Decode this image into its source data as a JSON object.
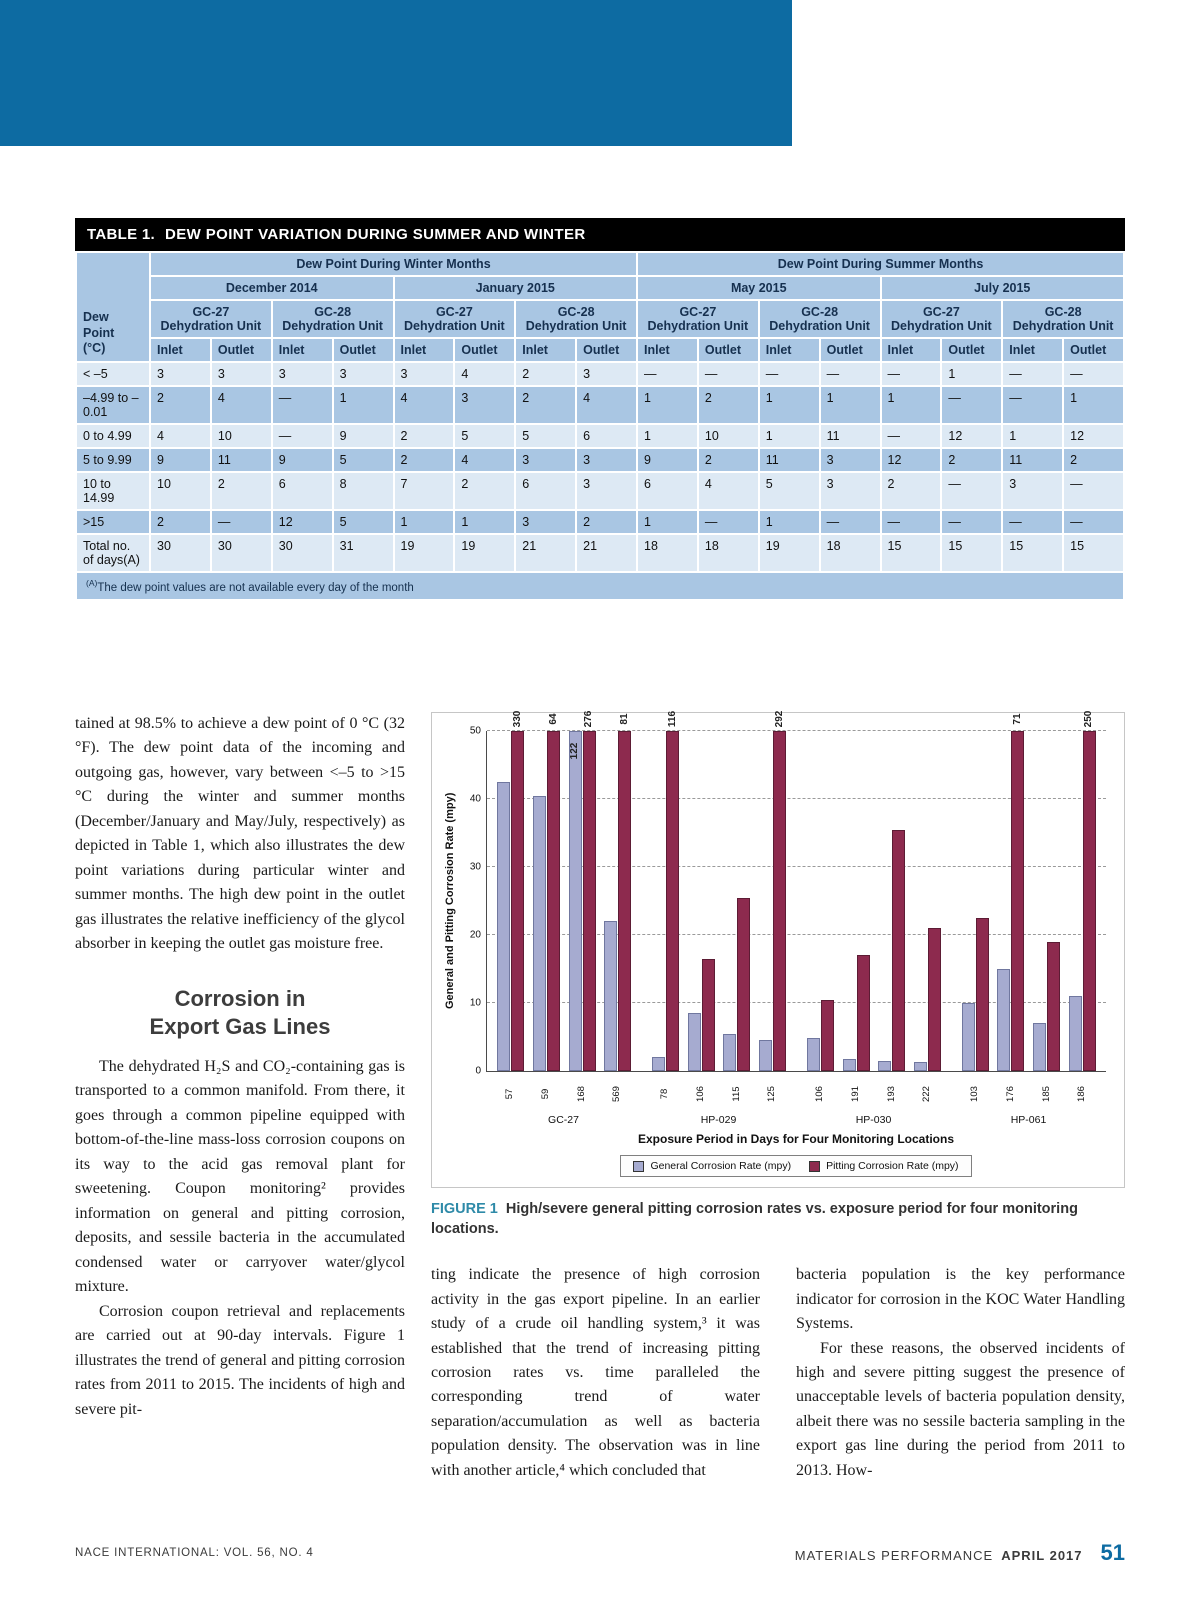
{
  "colors": {
    "accent_blue": "#0d6ba2",
    "table_header_blue": "#a9c6e3",
    "table_row_light": "#dde9f4",
    "bar_general": "#a6abd0",
    "bar_pitting": "#8d2a4e",
    "figure_label_teal": "#2e8aa8",
    "titlebar_black": "#000000"
  },
  "table1": {
    "label": "TABLE 1.",
    "title": "DEW POINT VARIATION DURING SUMMER AND WINTER",
    "corner_label": "Dew\nPoint\n(°C)",
    "season_headers": [
      "Dew Point During Winter Months",
      "Dew Point During Summer Months"
    ],
    "month_headers": [
      "December 2014",
      "January 2015",
      "May 2015",
      "July 2015"
    ],
    "unit_headers": [
      "GC-27 Dehydration Unit",
      "GC-28 Dehydration Unit"
    ],
    "io_headers": [
      "Inlet",
      "Outlet"
    ],
    "rows": [
      {
        "label": "< –5",
        "values": [
          "3",
          "3",
          "3",
          "3",
          "3",
          "4",
          "2",
          "3",
          "—",
          "—",
          "—",
          "—",
          "—",
          "1",
          "—",
          "—"
        ]
      },
      {
        "label": "–4.99 to –0.01",
        "values": [
          "2",
          "4",
          "—",
          "1",
          "4",
          "3",
          "2",
          "4",
          "1",
          "2",
          "1",
          "1",
          "1",
          "—",
          "—",
          "1"
        ]
      },
      {
        "label": "0 to 4.99",
        "values": [
          "4",
          "10",
          "—",
          "9",
          "2",
          "5",
          "5",
          "6",
          "1",
          "10",
          "1",
          "11",
          "—",
          "12",
          "1",
          "12"
        ]
      },
      {
        "label": "5 to 9.99",
        "values": [
          "9",
          "11",
          "9",
          "5",
          "2",
          "4",
          "3",
          "3",
          "9",
          "2",
          "11",
          "3",
          "12",
          "2",
          "11",
          "2"
        ]
      },
      {
        "label": "10 to 14.99",
        "values": [
          "10",
          "2",
          "6",
          "8",
          "7",
          "2",
          "6",
          "3",
          "6",
          "4",
          "5",
          "3",
          "2",
          "—",
          "3",
          "—"
        ]
      },
      {
        "label": ">15",
        "values": [
          "2",
          "—",
          "12",
          "5",
          "1",
          "1",
          "3",
          "2",
          "1",
          "—",
          "1",
          "—",
          "—",
          "—",
          "—",
          "—"
        ]
      },
      {
        "label": "Total no. of days(A)",
        "values": [
          "30",
          "30",
          "30",
          "31",
          "19",
          "19",
          "21",
          "21",
          "18",
          "18",
          "19",
          "18",
          "15",
          "15",
          "15",
          "15"
        ]
      }
    ],
    "footnote_marker": "(A)",
    "footnote_text": "The dew point values are not available every day of the month"
  },
  "columns": {
    "left": {
      "p1": "tained at 98.5% to achieve a dew point of 0 °C (32 °F). The dew point data of the incoming and outgoing gas, however, vary between <–5 to >15 °C during the winter and summer months (December/January and May/July, respectively) as depicted in Table 1, which also illustrates the dew point variations during particular winter and summer months. The high dew point in the outlet gas illustrates the relative inefficiency of the glycol absorber in keeping the outlet gas moisture free.",
      "heading_lines": [
        "Corrosion in",
        "Export Gas Lines"
      ],
      "p2": "The dehydrated H₂S and CO₂-containing gas is transported to a common manifold. From there, it goes through a common pipeline equipped with bottom-of-the-line mass-loss corrosion coupons on its way to the acid gas removal plant for sweetening. Coupon monitoring² provides information on general and pitting corrosion, deposits, and sessile bacteria in the accumulated condensed water or carryover water/glycol mixture.",
      "p3": "Corrosion coupon retrieval and replacements are carried out at 90-day intervals. Figure 1 illustrates the trend of general and pitting corrosion rates from 2011 to 2015. The incidents of high and severe pit-"
    },
    "middle": {
      "p1": "ting indicate the presence of high corrosion activity in the gas export pipeline. In an earlier study of a crude oil handling system,³ it was established that the trend of increasing pitting corrosion rates vs. time paralleled the corresponding trend of water separation/accumulation as well as bacteria population density. The observation was in line with another article,⁴ which concluded that"
    },
    "right": {
      "p1": "bacteria population is the key performance indicator for corrosion in the KOC Water Handling Systems.",
      "p2": "For these reasons, the observed incidents of high and severe pitting suggest the presence of unacceptable levels of bacteria population density, albeit there was no sessile bacteria sampling in the export gas line during the period from 2011 to 2013. How-"
    }
  },
  "figure_caption": {
    "label": "FIGURE 1",
    "text": "High/severe general pitting corrosion rates vs. exposure period for four monitoring locations."
  },
  "chart_data": {
    "type": "bar",
    "title": "",
    "ylabel": "General  and Pitting Corrosion Rate (mpy)",
    "xlabel": "Exposure Period in Days for Four Monitoring Locations",
    "ylim": [
      0,
      50
    ],
    "yticks": [
      0,
      10,
      20,
      30,
      40,
      50
    ],
    "grid": "dashed-horizontal",
    "legend": [
      "General Corrosion Rate (mpy)",
      "Pitting Corrosion Rate (mpy)"
    ],
    "clipping_note": "bars exceeding 50 mpy are clipped at the axis limit and labeled with their value",
    "groups": [
      {
        "name": "GC-27",
        "points": [
          {
            "x": "57",
            "general": 42.5,
            "pitting": 330
          },
          {
            "x": "59",
            "general": 40.5,
            "pitting": 64
          },
          {
            "x": "168",
            "general": 122,
            "pitting": 276
          },
          {
            "x": "569",
            "general": 22,
            "pitting": 81
          }
        ]
      },
      {
        "name": "HP-029",
        "points": [
          {
            "x": "78",
            "general": 2,
            "pitting": 116
          },
          {
            "x": "106",
            "general": 8.5,
            "pitting": 16.5
          },
          {
            "x": "115",
            "general": 5.5,
            "pitting": 25.5
          },
          {
            "x": "125",
            "general": 4.5,
            "pitting": 292
          }
        ]
      },
      {
        "name": "HP-030",
        "points": [
          {
            "x": "106",
            "general": 4.8,
            "pitting": 10.5
          },
          {
            "x": "191",
            "general": 1.8,
            "pitting": 17
          },
          {
            "x": "193",
            "general": 1.5,
            "pitting": 35.5
          },
          {
            "x": "222",
            "general": 1.3,
            "pitting": 21
          }
        ]
      },
      {
        "name": "HP-061",
        "points": [
          {
            "x": "103",
            "general": 10,
            "pitting": 22.5
          },
          {
            "x": "176",
            "general": 15,
            "pitting": 71
          },
          {
            "x": "185",
            "general": 7,
            "pitting": 19
          },
          {
            "x": "186",
            "general": 11,
            "pitting": 250
          }
        ]
      }
    ]
  },
  "footer": {
    "left": "NACE INTERNATIONAL: VOL. 56, NO. 4",
    "brand": "MATERIALS PERFORMANCE",
    "issue": "APRIL 2017",
    "page": "51"
  }
}
